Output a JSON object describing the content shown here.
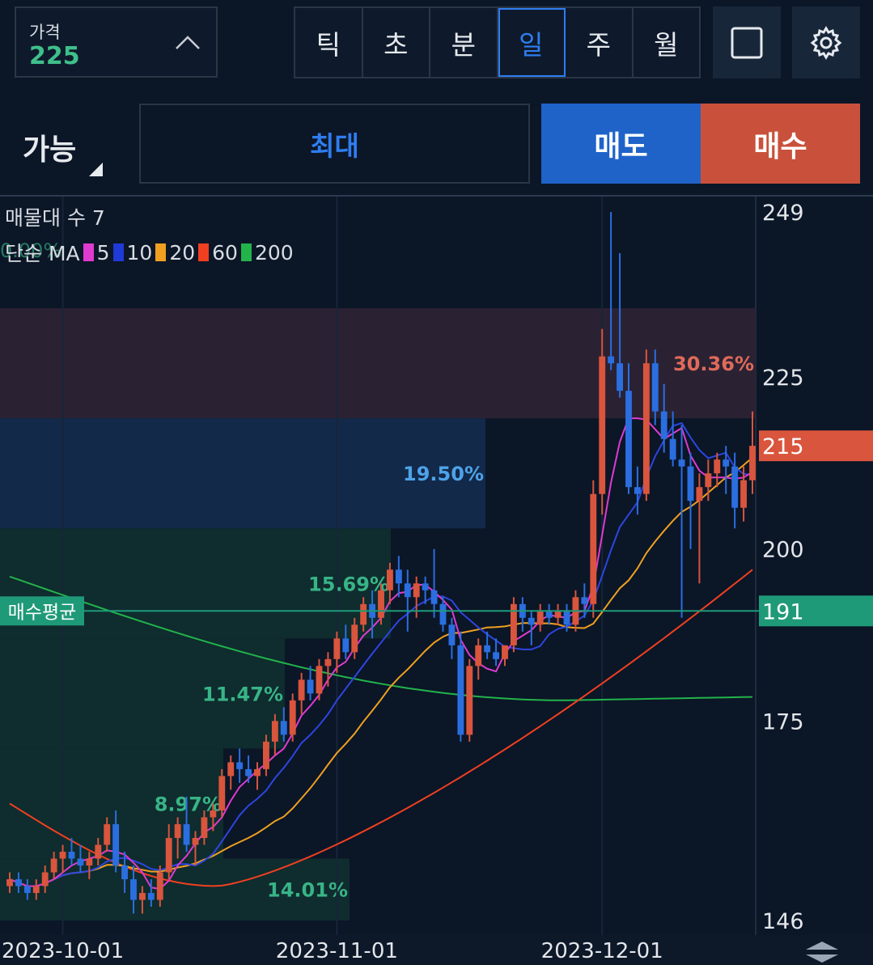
{
  "price_box": {
    "label": "가격",
    "value": "225"
  },
  "periods": [
    {
      "label": "틱",
      "active": false
    },
    {
      "label": "초",
      "active": false
    },
    {
      "label": "분",
      "active": false
    },
    {
      "label": "일",
      "active": true
    },
    {
      "label": "주",
      "active": false
    },
    {
      "label": "월",
      "active": false
    }
  ],
  "order": {
    "avail_label": "가능",
    "max_label": "최대",
    "sell_label": "매도",
    "buy_label": "매수"
  },
  "legend": {
    "volume_profile": "매물대 수 7",
    "ma_label": "단순 MA",
    "ma_items": [
      {
        "period": "5",
        "color": "#e03ad0"
      },
      {
        "period": "10",
        "color": "#1f3ad6"
      },
      {
        "period": "20",
        "color": "#f0a020"
      },
      {
        "period": "60",
        "color": "#f04020"
      },
      {
        "period": "200",
        "color": "#22b34a"
      }
    ],
    "ghost_pct": "0.00%"
  },
  "chart_data": {
    "type": "candlestick",
    "y_ticks": [
      249,
      225,
      200,
      175,
      146
    ],
    "ylim": [
      146,
      249
    ],
    "x_ticks": [
      "2023-10-01",
      "2023-11-01",
      "2023-12-01"
    ],
    "current_price": {
      "value": "215",
      "color": "#d9553d"
    },
    "avg_buy": {
      "label": "매수평균",
      "value": "191",
      "color": "#1f9a78"
    },
    "volume_profile_pcts": [
      {
        "pct": "30.36%",
        "low": 219,
        "high": 235
      },
      {
        "pct": "19.50%",
        "low": 203,
        "high": 219
      },
      {
        "pct": "15.69%",
        "low": 187,
        "high": 203
      },
      {
        "pct": "11.47%",
        "low": 171,
        "high": 187
      },
      {
        "pct": "8.97%",
        "low": 155,
        "high": 171
      },
      {
        "pct": "14.01%",
        "low": 146,
        "high": 155
      },
      {
        "pct": "0.00%",
        "low": 235,
        "high": 249
      }
    ],
    "candles": [
      [
        151,
        153,
        150,
        152
      ],
      [
        152,
        153,
        150,
        151
      ],
      [
        151,
        152,
        149,
        150
      ],
      [
        150,
        152,
        149,
        151
      ],
      [
        151,
        154,
        150,
        153
      ],
      [
        153,
        156,
        152,
        155
      ],
      [
        155,
        157,
        153,
        156
      ],
      [
        156,
        158,
        154,
        155
      ],
      [
        155,
        157,
        153,
        154
      ],
      [
        154,
        156,
        152,
        155
      ],
      [
        155,
        158,
        154,
        157
      ],
      [
        157,
        161,
        156,
        160
      ],
      [
        160,
        162,
        153,
        154
      ],
      [
        154,
        156,
        150,
        152
      ],
      [
        152,
        154,
        147,
        149
      ],
      [
        149,
        151,
        147,
        150
      ],
      [
        150,
        152,
        148,
        149
      ],
      [
        149,
        154,
        148,
        153
      ],
      [
        153,
        160,
        152,
        158
      ],
      [
        158,
        161,
        155,
        160
      ],
      [
        160,
        164,
        156,
        157
      ],
      [
        157,
        159,
        154,
        158
      ],
      [
        158,
        162,
        157,
        161
      ],
      [
        161,
        163,
        159,
        162
      ],
      [
        162,
        168,
        161,
        167
      ],
      [
        167,
        170,
        165,
        169
      ],
      [
        169,
        171,
        166,
        168
      ],
      [
        168,
        170,
        166,
        167
      ],
      [
        167,
        169,
        165,
        168
      ],
      [
        168,
        173,
        167,
        172
      ],
      [
        172,
        176,
        170,
        175
      ],
      [
        175,
        177,
        172,
        173
      ],
      [
        173,
        179,
        172,
        178
      ],
      [
        178,
        182,
        176,
        181
      ],
      [
        181,
        183,
        178,
        179
      ],
      [
        179,
        184,
        178,
        183
      ],
      [
        183,
        185,
        180,
        184
      ],
      [
        184,
        188,
        182,
        187
      ],
      [
        187,
        189,
        184,
        185
      ],
      [
        185,
        190,
        184,
        189
      ],
      [
        189,
        193,
        188,
        192
      ],
      [
        192,
        194,
        187,
        190
      ],
      [
        190,
        195,
        189,
        194
      ],
      [
        194,
        198,
        192,
        197
      ],
      [
        197,
        199,
        193,
        195
      ],
      [
        195,
        197,
        188,
        193
      ],
      [
        193,
        196,
        190,
        195
      ],
      [
        195,
        196,
        192,
        194
      ],
      [
        194,
        200,
        190,
        192
      ],
      [
        192,
        193,
        188,
        189
      ],
      [
        189,
        190,
        184,
        186
      ],
      [
        186,
        188,
        172,
        173
      ],
      [
        173,
        184,
        172,
        183
      ],
      [
        183,
        187,
        181,
        186
      ],
      [
        186,
        188,
        184,
        185
      ],
      [
        185,
        187,
        183,
        184
      ],
      [
        184,
        186,
        183,
        186
      ],
      [
        186,
        193,
        185,
        192
      ],
      [
        192,
        193,
        188,
        190
      ],
      [
        190,
        191,
        186,
        189
      ],
      [
        189,
        192,
        188,
        191
      ],
      [
        191,
        192,
        189,
        190
      ],
      [
        190,
        192,
        189,
        191
      ],
      [
        191,
        192,
        188,
        189
      ],
      [
        189,
        194,
        188,
        193
      ],
      [
        193,
        195,
        190,
        192
      ],
      [
        192,
        210,
        190,
        208
      ],
      [
        208,
        232,
        205,
        228
      ],
      [
        228,
        249,
        226,
        227
      ],
      [
        227,
        243,
        222,
        223
      ],
      [
        223,
        227,
        208,
        209
      ],
      [
        209,
        212,
        205,
        208
      ],
      [
        208,
        229,
        207,
        227
      ],
      [
        227,
        229,
        218,
        220
      ],
      [
        220,
        224,
        214,
        216
      ],
      [
        216,
        220,
        212,
        213
      ],
      [
        213,
        218,
        190,
        212
      ],
      [
        212,
        214,
        200,
        207
      ],
      [
        207,
        211,
        195,
        209
      ],
      [
        209,
        213,
        207,
        211
      ],
      [
        211,
        214,
        209,
        213
      ],
      [
        213,
        215,
        208,
        212
      ],
      [
        212,
        214,
        203,
        206
      ],
      [
        206,
        212,
        204,
        210
      ],
      [
        210,
        220,
        208,
        215
      ]
    ],
    "ma5_color": "#e03ad0",
    "ma10_color": "#2d46e0",
    "ma20_color": "#f0a020",
    "ma60_color": "#f04020",
    "ma200_color": "#22b34a",
    "up_color": "#d9553d",
    "down_color": "#2b6ee0"
  }
}
